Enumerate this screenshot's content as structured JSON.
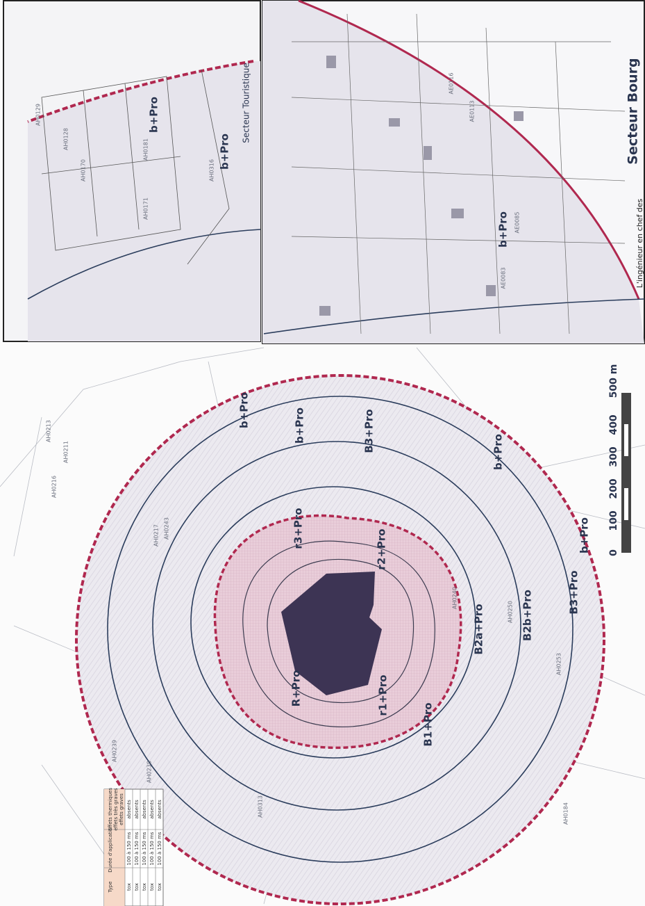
{
  "map": {
    "title": "Secteur Bourg",
    "signature": "L'ingénieur en chef des",
    "inset_left_label": "Secteur Touristique",
    "zones": [
      "R+Pro",
      "r1+Pro",
      "r2+Pro",
      "r3+Pro",
      "B1+Pro",
      "B2a+Pro",
      "B2b+Pro",
      "B3+Pro",
      "B3+Pro",
      "b+Pro",
      "b+Pro",
      "b+Pro",
      "b+Pro"
    ],
    "inset_zones": [
      "b+Pro",
      "b+Pro",
      "b+Pro"
    ],
    "parcels": [
      "AH0213",
      "AH0216",
      "AH0211",
      "AH0243",
      "AH0239",
      "AH0238",
      "AH0217",
      "AH0240",
      "AH0250",
      "AH0253",
      "AH0313",
      "AH0184",
      "AE0116",
      "AE0113",
      "AE0085",
      "AE0083",
      "AH0129",
      "AH0128",
      "AH0170",
      "AH0171",
      "AH0181",
      "AH0316"
    ],
    "scale": {
      "ticks": [
        0,
        100,
        200,
        300,
        400
      ],
      "end_label": "500 m"
    }
  },
  "table": {
    "headers": [
      "Type",
      "Durée d'application",
      "Effets thermiques"
    ],
    "subheaders": [
      "effets très graves",
      "effets graves"
    ],
    "rows": [
      [
        "tox",
        "100 à 150 ms",
        "absents"
      ],
      [
        "tox",
        "100 à 150 ms",
        "absents"
      ],
      [
        "tox",
        "100 à 150 ms",
        "absents"
      ],
      [
        "tox",
        "100 à 150 ms",
        "absents"
      ],
      [
        "tox",
        "100 à 150 ms",
        "absents"
      ]
    ]
  }
}
